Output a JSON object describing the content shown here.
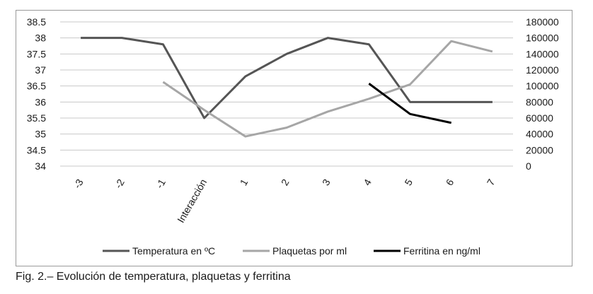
{
  "chart_data": {
    "type": "line",
    "categories": [
      "-3",
      "-2",
      "-1",
      "Interacción",
      "1",
      "2",
      "3",
      "4",
      "5",
      "6",
      "7"
    ],
    "y_left": {
      "ticks": [
        "34",
        "34.5",
        "35",
        "35.5",
        "36",
        "36.5",
        "37",
        "37.5",
        "38",
        "38.5"
      ],
      "range": [
        34,
        38.5
      ]
    },
    "y_right": {
      "ticks": [
        "0",
        "20000",
        "40000",
        "60000",
        "80000",
        "100000",
        "120000",
        "140000",
        "160000",
        "180000"
      ],
      "range": [
        0,
        180000
      ]
    },
    "grid": true,
    "legend_position": "bottom",
    "series": [
      {
        "name": "Temperatura en ºC",
        "axis": "left",
        "color": "#555555",
        "values": [
          38,
          38,
          37.8,
          35.5,
          36.8,
          37.5,
          38,
          37.8,
          36,
          36,
          36
        ]
      },
      {
        "name": "Plaquetas por ml",
        "axis": "right",
        "color": "#a6a6a6",
        "values": [
          null,
          null,
          105000,
          70000,
          37000,
          48000,
          68000,
          84000,
          102000,
          156000,
          143000
        ]
      },
      {
        "name": "Ferritina en ng/ml",
        "axis": "right",
        "color": "#000000",
        "values": [
          null,
          null,
          null,
          null,
          null,
          null,
          null,
          103000,
          65000,
          54000,
          null
        ]
      }
    ]
  },
  "caption": "Fig. 2.– Evolución de temperatura, plaquetas y ferritina"
}
